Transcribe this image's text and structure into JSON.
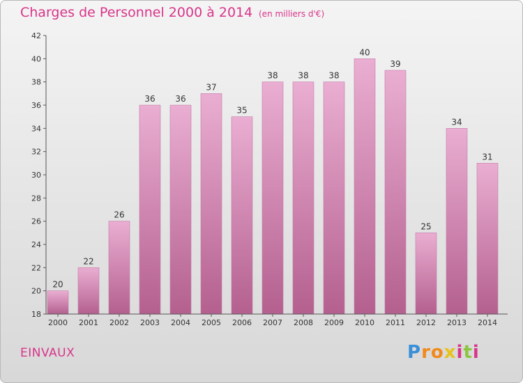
{
  "header": {
    "title": "Charges de Personnel 2000 à 2014",
    "unit_note": "(en milliers d'€)"
  },
  "footer": {
    "commune": "EINVAUX",
    "brand": "Proxiti"
  },
  "colors": {
    "accent": "#d9348a",
    "bar_light": "#eaaed2",
    "bar_dark": "#b4608f"
  },
  "chart_data": {
    "type": "bar",
    "title": "Charges de Personnel 2000 à 2014",
    "subtitle": "(en milliers d'€)",
    "xlabel": "",
    "ylabel": "",
    "categories": [
      "2000",
      "2001",
      "2002",
      "2003",
      "2004",
      "2005",
      "2006",
      "2007",
      "2008",
      "2009",
      "2010",
      "2011",
      "2012",
      "2013",
      "2014"
    ],
    "values": [
      20,
      22,
      26,
      36,
      36,
      37,
      35,
      38,
      38,
      38,
      40,
      39,
      25,
      34,
      31
    ],
    "ylim": [
      18,
      42
    ],
    "yticks": [
      18,
      20,
      22,
      24,
      26,
      28,
      30,
      32,
      34,
      36,
      38,
      40,
      42
    ],
    "grid": false,
    "legend": "none",
    "data_labels": true
  }
}
